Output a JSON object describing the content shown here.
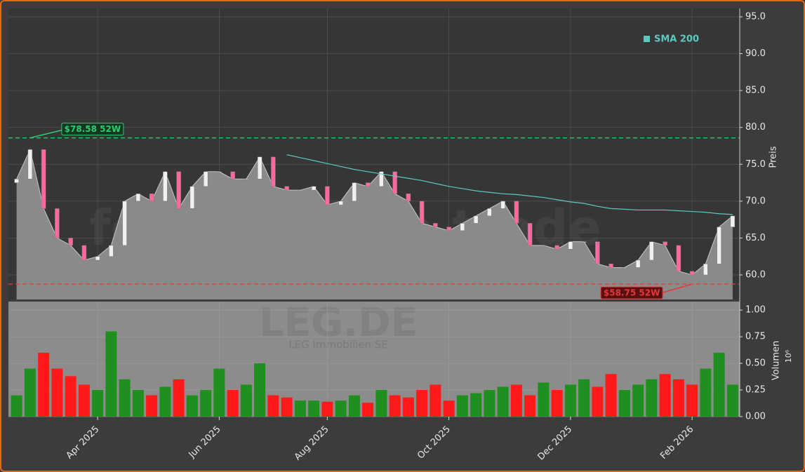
{
  "chart_data": {
    "type": "candlestick",
    "watermark": "forexsignale.trade",
    "ticker": "LEG.DE",
    "company": "LEG Immobilien SE",
    "categories": [
      null,
      null,
      null,
      null,
      null,
      null,
      "Apr 2025",
      null,
      null,
      null,
      null,
      null,
      null,
      null,
      null,
      "Jun 2025",
      null,
      null,
      null,
      null,
      null,
      null,
      null,
      "Aug 2025",
      null,
      null,
      null,
      null,
      null,
      null,
      null,
      null,
      "Oct 2025",
      null,
      null,
      null,
      null,
      null,
      null,
      null,
      null,
      "Dec 2025",
      null,
      null,
      null,
      null,
      null,
      null,
      null,
      null,
      "Feb 2026",
      null,
      null,
      null
    ],
    "open": [
      72.5,
      73,
      77,
      69,
      65,
      64,
      62,
      62.5,
      64,
      70,
      71,
      70,
      74,
      69,
      72,
      74,
      74,
      73,
      73,
      76,
      72,
      71.5,
      71.5,
      72,
      69.5,
      70,
      72.5,
      72,
      74,
      71,
      70,
      67,
      66.5,
      66,
      67,
      68,
      69,
      70,
      67,
      64,
      64,
      63.5,
      64.5,
      64.5,
      61.5,
      61,
      61,
      62,
      64.5,
      64,
      60.5,
      60,
      61.5,
      66.5
    ],
    "close": [
      73,
      77,
      69,
      65,
      64,
      62,
      62.5,
      64,
      70,
      71,
      70,
      74,
      69,
      72,
      74,
      74,
      73,
      73,
      76,
      72,
      71.5,
      71.5,
      72,
      69.5,
      70,
      72.5,
      72,
      74,
      71,
      70,
      67,
      66.5,
      66,
      67,
      68,
      69,
      70,
      67,
      64,
      64,
      63.5,
      64.5,
      64.5,
      61.5,
      61,
      61,
      62,
      64.5,
      64,
      60.5,
      60,
      61.5,
      66.5,
      68
    ],
    "up_color": "#1f8f1f",
    "down_color": "#ff1a1a",
    "area_color": "#8a8a8a",
    "series": [
      {
        "name": "SMA 200",
        "color": "#5cc9c0",
        "values": [
          null,
          null,
          null,
          null,
          null,
          null,
          null,
          null,
          null,
          null,
          null,
          null,
          null,
          null,
          null,
          null,
          null,
          null,
          null,
          null,
          76.3,
          75.9,
          75.5,
          75.1,
          74.7,
          74.3,
          74.0,
          73.7,
          73.4,
          73.1,
          72.8,
          72.4,
          72.0,
          71.7,
          71.4,
          71.2,
          71.0,
          70.9,
          70.7,
          70.5,
          70.2,
          69.9,
          69.7,
          69.3,
          69.0,
          68.9,
          68.8,
          68.8,
          68.8,
          68.7,
          68.6,
          68.5,
          68.3,
          68.2
        ]
      }
    ],
    "hlines": [
      {
        "value": 78.58,
        "label": "$78.58 52W",
        "color": "#2ecc71",
        "at": 1
      },
      {
        "value": 58.75,
        "label": "$58.75 52W",
        "color": "#e53935",
        "at": 50
      }
    ],
    "ylabel": "Preis",
    "ylim": [
      56.67,
      96.14
    ],
    "yticks": [
      {
        "value": 60,
        "label": "60.0"
      },
      {
        "value": 65,
        "label": "65.0"
      },
      {
        "value": 70,
        "label": "70.0"
      },
      {
        "value": 75,
        "label": "75.0"
      },
      {
        "value": 80,
        "label": "80.0"
      },
      {
        "value": 85,
        "label": "85.0"
      },
      {
        "value": 90,
        "label": "90.0"
      },
      {
        "value": 95,
        "label": "95.0"
      }
    ],
    "grid": true,
    "volume": {
      "ylabel": "Volumen",
      "unit": "10⁶",
      "ylim": [
        0,
        1.08
      ],
      "yticks": [
        {
          "value": 0,
          "label": "0.00"
        },
        {
          "value": 0.25,
          "label": "0.25"
        },
        {
          "value": 0.5,
          "label": "0.50"
        },
        {
          "value": 0.75,
          "label": "0.75"
        },
        {
          "value": 1,
          "label": "1.00"
        }
      ],
      "values": [
        0.2,
        0.45,
        0.6,
        0.45,
        0.38,
        0.3,
        0.25,
        0.8,
        0.35,
        0.25,
        0.2,
        0.28,
        0.35,
        0.2,
        0.25,
        0.45,
        0.25,
        0.3,
        0.5,
        0.2,
        0.18,
        0.15,
        0.15,
        0.14,
        0.15,
        0.2,
        0.13,
        0.25,
        0.2,
        0.18,
        0.25,
        0.3,
        0.15,
        0.2,
        0.22,
        0.25,
        0.28,
        0.3,
        0.2,
        0.32,
        0.25,
        0.3,
        0.35,
        0.28,
        0.4,
        0.25,
        0.3,
        0.35,
        0.4,
        0.35,
        0.3,
        0.45,
        0.6,
        0.3
      ]
    }
  }
}
